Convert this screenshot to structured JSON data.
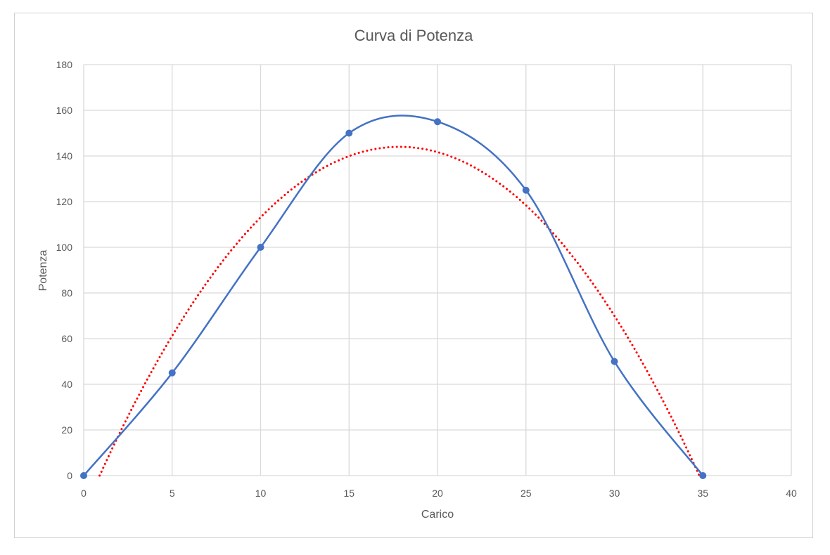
{
  "chart_data": {
    "type": "line",
    "title": "Curva di Potenza",
    "xlabel": "Carico",
    "ylabel": "Potenza",
    "xlim": [
      0,
      40
    ],
    "ylim": [
      0,
      180
    ],
    "xticks": [
      0,
      5,
      10,
      15,
      20,
      25,
      30,
      35,
      40
    ],
    "yticks": [
      0,
      20,
      40,
      60,
      80,
      100,
      120,
      140,
      160,
      180
    ],
    "grid": true,
    "legend": "none",
    "series": [
      {
        "name": "Potenza",
        "style": "smooth line with markers",
        "color": "#4472c4",
        "x": [
          0,
          5,
          10,
          15,
          20,
          25,
          30,
          35
        ],
        "y": [
          0,
          45,
          100,
          150,
          155,
          125,
          50,
          0
        ]
      }
    ],
    "trendline": {
      "type": "polynomial order 2",
      "style": "dotted",
      "color": "#ff0000",
      "roots": [
        0.9,
        34.8
      ],
      "peak": [
        17.85,
        144
      ]
    }
  }
}
